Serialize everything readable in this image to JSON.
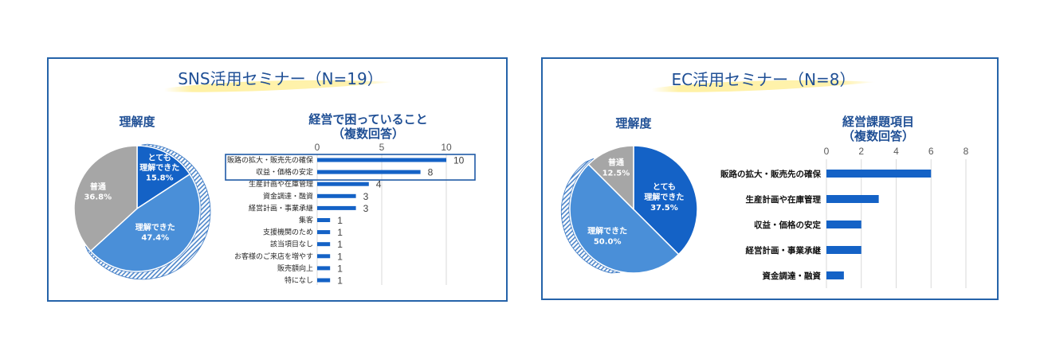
{
  "panels": [
    {
      "title": "SNS活用セミナー（N=19）"
    },
    {
      "title": "EC活用セミナー（N=8）"
    }
  ],
  "colors": {
    "frame": "#2563a9",
    "title_text": "#1f4f95",
    "title_marker": "#fff0a0",
    "bar": "#1462c6",
    "gridline": "#d9d9d9",
    "hatch": "#3f7cc6",
    "highlight_box": "#1f5aa6"
  },
  "chart_data": [
    {
      "type": "pie",
      "title": "理解度",
      "slices": [
        {
          "label_lines": [
            "とても",
            "理解できた"
          ],
          "value": 15.8,
          "value_label": "15.8%",
          "color": "#1462c6"
        },
        {
          "label_lines": [
            "理解できた"
          ],
          "value": 47.4,
          "value_label": "47.4%",
          "color": "#4a8fd8"
        },
        {
          "label_lines": [
            "普通"
          ],
          "value": 36.8,
          "value_label": "36.8%",
          "color": "#a6a6a6"
        }
      ]
    },
    {
      "type": "bar",
      "horizontal": true,
      "title": "経営で困っていること",
      "subtitle": "（複数回答）",
      "categories": [
        "販路の拡大・販売先の確保",
        "収益・価格の安定",
        "生産計画や在庫管理",
        "資金調達・融資",
        "経営計画・事業承継",
        "集客",
        "支援機関のため",
        "該当項目なし",
        "お客様のご来店を増やす",
        "販売額向上",
        "特になし"
      ],
      "values": [
        10,
        8,
        4,
        3,
        3,
        1,
        1,
        1,
        1,
        1,
        1
      ],
      "xticks": [
        0,
        5,
        10
      ],
      "xlim": [
        0,
        10
      ],
      "grid": true,
      "data_labels": true,
      "highlighted_rows": [
        0,
        1
      ]
    },
    {
      "type": "pie",
      "title": "理解度",
      "slices": [
        {
          "label_lines": [
            "とても",
            "理解できた"
          ],
          "value": 37.5,
          "value_label": "37.5%",
          "color": "#1462c6"
        },
        {
          "label_lines": [
            "理解できた"
          ],
          "value": 50.0,
          "value_label": "50.0%",
          "color": "#4a8fd8"
        },
        {
          "label_lines": [
            "普通"
          ],
          "value": 12.5,
          "value_label": "12.5%",
          "color": "#a6a6a6"
        }
      ]
    },
    {
      "type": "bar",
      "horizontal": true,
      "title": "経営課題項目",
      "subtitle": "（複数回答）",
      "categories": [
        "販路の拡大・販売先の確保",
        "生産計画や在庫管理",
        "収益・価格の安定",
        "経営計画・事業承継",
        "資金調達・融資"
      ],
      "values": [
        6,
        3,
        2,
        2,
        1
      ],
      "xticks": [
        0,
        2,
        4,
        6,
        8
      ],
      "xlim": [
        0,
        8
      ],
      "grid": true,
      "data_labels": false
    }
  ]
}
